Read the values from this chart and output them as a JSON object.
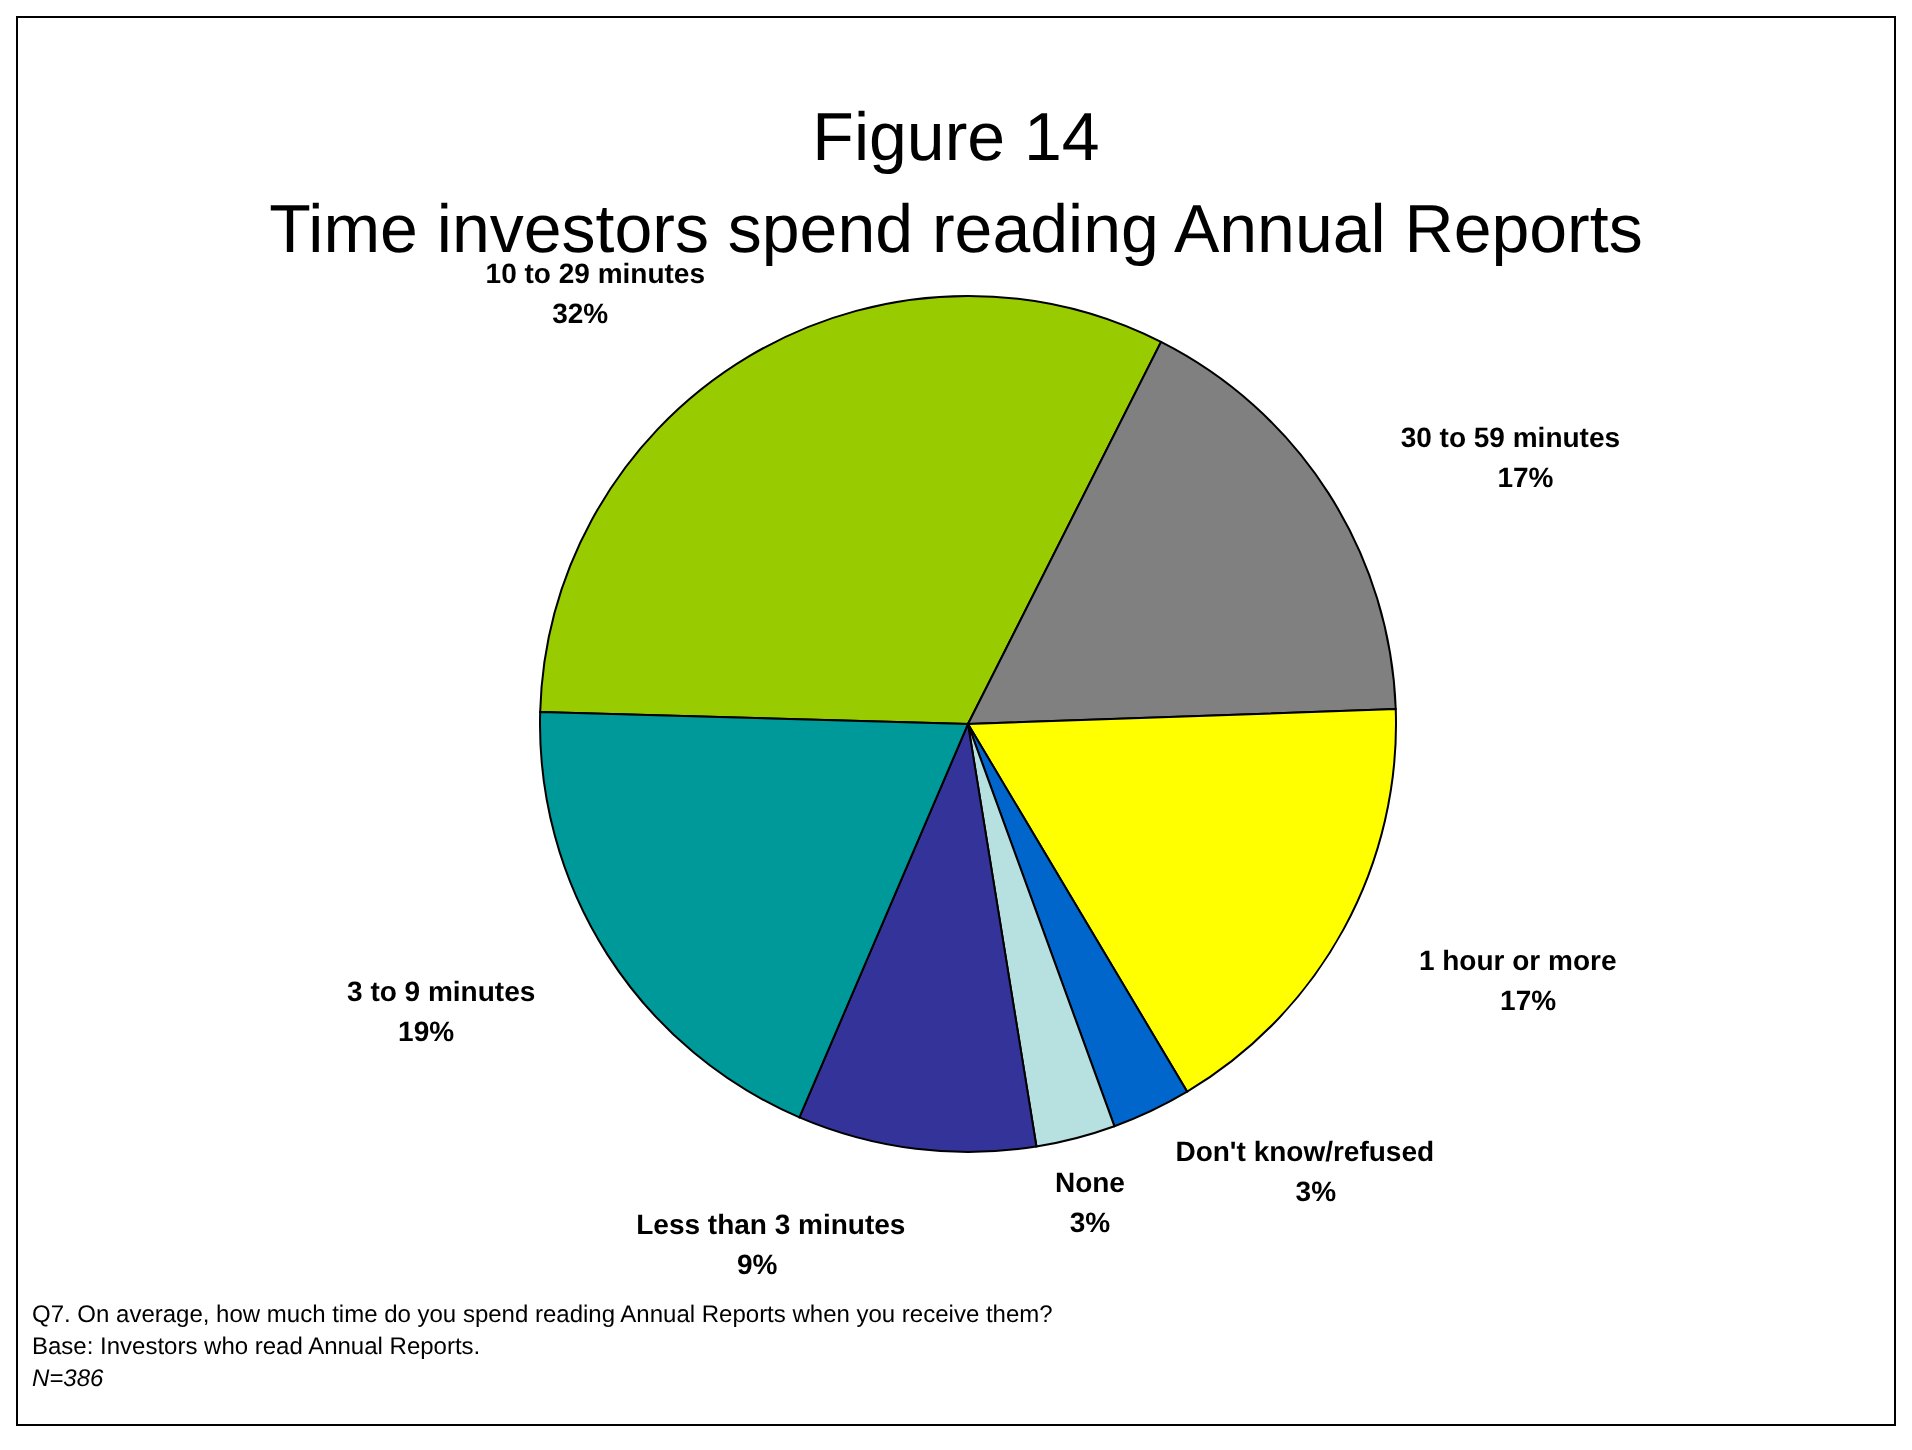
{
  "chart_data": {
    "type": "pie",
    "title": "Figure 14",
    "subtitle": "Time investors spend reading Annual Reports",
    "categories": [
      "10 to 29 minutes",
      "30 to 59 minutes",
      "1 hour or more",
      "Don't know/refused",
      "None",
      "Less than 3 minutes",
      "3 to 9 minutes"
    ],
    "values": [
      32,
      17,
      17,
      3,
      3,
      9,
      19
    ],
    "value_labels": [
      "32%",
      "17%",
      "17%",
      "3%",
      "3%",
      "9%",
      "19%"
    ],
    "colors": [
      "#99cc00",
      "#808080",
      "#ffff00",
      "#0066cc",
      "#b7e0e0",
      "#333399",
      "#009999"
    ],
    "annotations": [
      "Q7. On average, how much time do you spend reading Annual Reports when you receive them?",
      "Base: Investors who read Annual Reports.",
      "N=386"
    ]
  }
}
